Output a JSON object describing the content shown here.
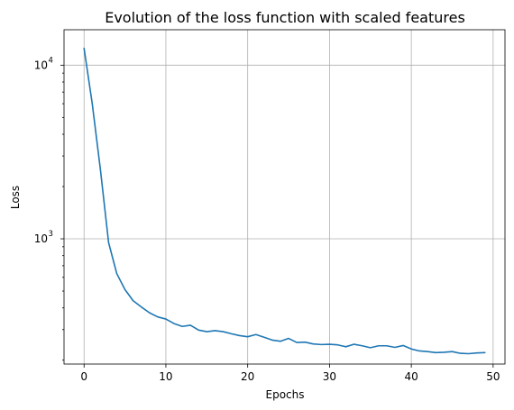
{
  "chart_data": {
    "type": "line",
    "title": "Evolution of the loss function with scaled features",
    "xlabel": "Epochs",
    "ylabel": "Loss",
    "yscale": "log",
    "grid": true,
    "xlim": [
      -2.45,
      51.45
    ],
    "ylim": [
      190,
      16000
    ],
    "xticks": [
      0,
      10,
      20,
      30,
      40,
      50
    ],
    "xtick_labels": [
      "0",
      "10",
      "20",
      "30",
      "40",
      "50"
    ],
    "yticks": [
      {
        "value": 10000,
        "base": "10",
        "exp": "4"
      },
      {
        "value": 1000,
        "base": "10",
        "exp": "3"
      }
    ],
    "minor_yticks": [
      200,
      300,
      400,
      500,
      600,
      700,
      800,
      900,
      2000,
      3000,
      4000,
      5000,
      6000,
      7000,
      8000,
      9000
    ],
    "series": [
      {
        "color": "#1f77b4",
        "x": [
          0,
          1,
          2,
          3,
          4,
          5,
          6,
          7,
          8,
          9,
          10,
          11,
          12,
          13,
          14,
          15,
          16,
          17,
          18,
          19,
          20,
          21,
          22,
          23,
          24,
          25,
          26,
          27,
          28,
          29,
          30,
          31,
          32,
          33,
          34,
          35,
          36,
          37,
          38,
          39,
          40,
          41,
          42,
          43,
          44,
          45,
          46,
          47,
          48,
          49
        ],
        "values": [
          12500,
          6000,
          2500,
          950,
          630,
          510,
          440,
          405,
          375,
          355,
          345,
          325,
          313,
          318,
          298,
          292,
          296,
          292,
          284,
          277,
          273,
          281,
          271,
          261,
          257,
          267,
          253,
          254,
          248,
          246,
          247,
          245,
          239,
          247,
          242,
          236,
          242,
          242,
          237,
          243,
          232,
          226,
          224,
          221,
          222,
          224,
          219,
          218,
          220,
          221
        ]
      }
    ]
  }
}
